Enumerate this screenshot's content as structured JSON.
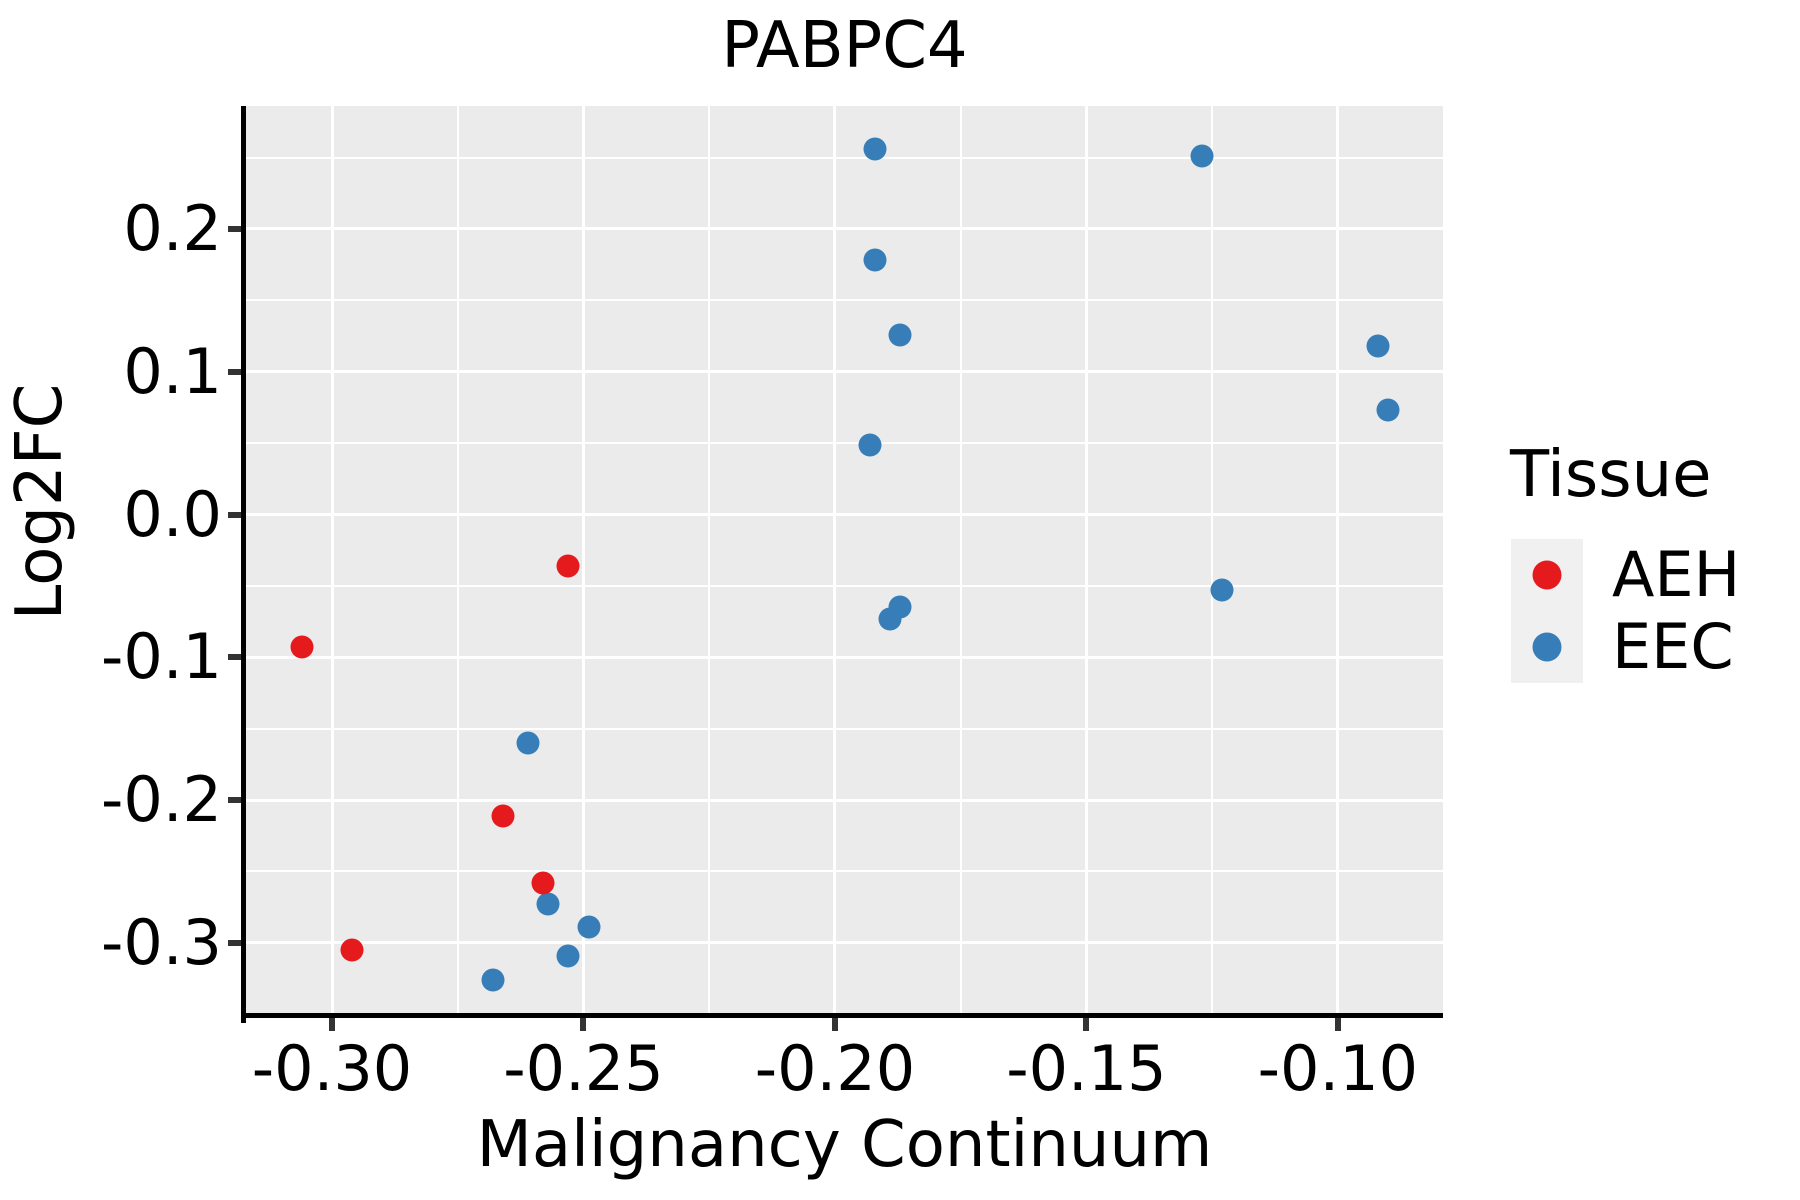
{
  "chart_data": {
    "type": "scatter",
    "title": "PABPC4",
    "xlabel": "Malignancy Continuum",
    "ylabel": "Log2FC",
    "xlim": [
      -0.3171,
      -0.0791
    ],
    "ylim": [
      -0.3526,
      0.2861
    ],
    "grid": true,
    "panel_background": "#EBEBEB",
    "gridline_color": "#ffffff",
    "x_major_ticks": [
      -0.3,
      -0.25,
      -0.2,
      -0.15,
      -0.1
    ],
    "x_tick_labels": [
      "-0.30",
      "-0.25",
      "-0.20",
      "-0.15",
      "-0.10"
    ],
    "x_minor_ticks": [
      -0.275,
      -0.225,
      -0.175,
      -0.125
    ],
    "y_major_ticks": [
      0.2,
      0.1,
      0.0,
      -0.1,
      -0.2,
      -0.3
    ],
    "y_tick_labels": [
      "0.2",
      "0.1",
      "0.0",
      "-0.1",
      "-0.2",
      "-0.3"
    ],
    "y_minor_ticks": [
      0.25,
      0.15,
      0.05,
      -0.05,
      -0.15,
      -0.25,
      -0.35
    ],
    "legend": {
      "title": "Tissue",
      "position": "right",
      "entries": [
        {
          "label": "AEH",
          "color": "#E41A1C"
        },
        {
          "label": "EEC",
          "color": "#377EB8"
        }
      ]
    },
    "series": [
      {
        "name": "EEC",
        "color": "#377EB8",
        "points": [
          [
            -0.192,
            0.256
          ],
          [
            -0.192,
            0.178
          ],
          [
            -0.187,
            0.126
          ],
          [
            -0.193,
            0.049
          ],
          [
            -0.127,
            0.251
          ],
          [
            -0.092,
            0.118
          ],
          [
            -0.09,
            0.073
          ],
          [
            -0.123,
            -0.053
          ],
          [
            -0.187,
            -0.065
          ],
          [
            -0.189,
            -0.073
          ],
          [
            -0.261,
            -0.16
          ],
          [
            -0.257,
            -0.273
          ],
          [
            -0.249,
            -0.289
          ],
          [
            -0.253,
            -0.309
          ],
          [
            -0.268,
            -0.326
          ]
        ]
      },
      {
        "name": "AEH",
        "color": "#E41A1C",
        "points": [
          [
            -0.306,
            -0.093
          ],
          [
            -0.253,
            -0.036
          ],
          [
            -0.266,
            -0.211
          ],
          [
            -0.258,
            -0.258
          ],
          [
            -0.296,
            -0.305
          ]
        ]
      }
    ]
  }
}
